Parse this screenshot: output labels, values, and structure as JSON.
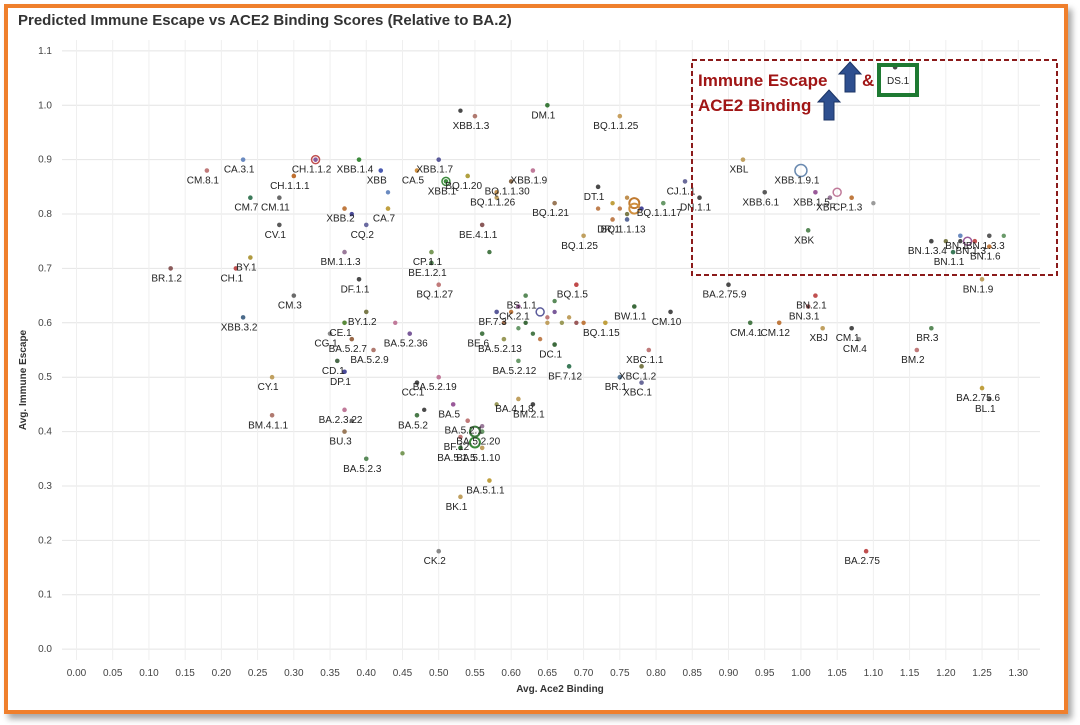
{
  "chart_data": {
    "type": "scatter",
    "title": "Predicted Immune Escape vs ACE2 Binding Scores (Relative to BA.2)",
    "xlabel": "Avg. Ace2 Binding",
    "ylabel": "Avg. Immune Escape",
    "xlim": [
      -0.02,
      1.33
    ],
    "ylim": [
      -0.02,
      1.12
    ],
    "grid": true,
    "xticks": [
      "0.00",
      "0.05",
      "0.10",
      "0.15",
      "0.20",
      "0.25",
      "0.30",
      "0.35",
      "0.40",
      "0.45",
      "0.50",
      "0.55",
      "0.60",
      "0.65",
      "0.70",
      "0.75",
      "0.80",
      "0.85",
      "0.90",
      "0.95",
      "1.00",
      "1.05",
      "1.10",
      "1.15",
      "1.20",
      "1.25",
      "1.30"
    ],
    "yticks": [
      "0.0",
      "0.1",
      "0.2",
      "0.3",
      "0.4",
      "0.5",
      "0.6",
      "0.7",
      "0.8",
      "0.9",
      "1.0",
      "1.1"
    ],
    "annotation": {
      "line1": "Immune Escape",
      "amp": "&",
      "line2": "ACE2 Binding",
      "highlight": "DS.1"
    },
    "points": [
      {
        "label": "XBB.1.3",
        "x": 0.55,
        "y": 0.98,
        "c": "#b07a70"
      },
      {
        "label": "DM.1",
        "x": 0.65,
        "y": 1.0,
        "c": "#3c7a3c"
      },
      {
        "label": "BQ.1.1.25",
        "x": 0.75,
        "y": 0.98,
        "c": "#c8a060"
      },
      {
        "label": "CH.1.1.2",
        "x": 0.33,
        "y": 0.9,
        "c": "#8a5a9a"
      },
      {
        "label": "CA.3.1",
        "x": 0.23,
        "y": 0.9,
        "c": "#6a8ac0"
      },
      {
        "label": "CM.8.1",
        "x": 0.18,
        "y": 0.88,
        "c": "#c07a7a"
      },
      {
        "label": "CH.1.1.1",
        "x": 0.3,
        "y": 0.87,
        "c": "#c07030"
      },
      {
        "label": "XBB.1.4",
        "x": 0.39,
        "y": 0.9,
        "c": "#3c8a3c"
      },
      {
        "label": "XBB",
        "x": 0.42,
        "y": 0.88,
        "c": "#4a5ab0"
      },
      {
        "label": "CA.5",
        "x": 0.47,
        "y": 0.88,
        "c": "#d09040"
      },
      {
        "label": "XBB.1.7",
        "x": 0.5,
        "y": 0.9,
        "c": "#5a5a9a"
      },
      {
        "label": "XBB.1",
        "x": 0.51,
        "y": 0.86,
        "c": "#3c8a3c"
      },
      {
        "label": "BQ.1.20",
        "x": 0.54,
        "y": 0.87,
        "c": "#b0a040"
      },
      {
        "label": "XBB.1.9",
        "x": 0.63,
        "y": 0.88,
        "c": "#c07a9a"
      },
      {
        "label": "BQ.1.1.30",
        "x": 0.6,
        "y": 0.86,
        "c": "#8a6a4a"
      },
      {
        "label": "BQ.1.1.26",
        "x": 0.58,
        "y": 0.84,
        "c": "#c09050"
      },
      {
        "label": "DT.1",
        "x": 0.72,
        "y": 0.85,
        "c": "#4a4a4a"
      },
      {
        "label": "CM.7",
        "x": 0.24,
        "y": 0.83,
        "c": "#3c7a5a"
      },
      {
        "label": "CM.11",
        "x": 0.28,
        "y": 0.83,
        "c": "#6a6a6a"
      },
      {
        "label": "XBB.2",
        "x": 0.37,
        "y": 0.81,
        "c": "#c07a40"
      },
      {
        "label": "CA.7",
        "x": 0.43,
        "y": 0.81,
        "c": "#c0a040"
      },
      {
        "label": "BQ.1.21",
        "x": 0.66,
        "y": 0.82,
        "c": "#9a7a5a"
      },
      {
        "label": "BQ.1.1.17",
        "x": 0.81,
        "y": 0.82,
        "c": "#6a9a6a"
      },
      {
        "label": "CV.1",
        "x": 0.28,
        "y": 0.78,
        "c": "#5a5a5a"
      },
      {
        "label": "CQ.2",
        "x": 0.4,
        "y": 0.78,
        "c": "#6a6aa0"
      },
      {
        "label": "BE.4.1.1",
        "x": 0.56,
        "y": 0.78,
        "c": "#8a5a5a"
      },
      {
        "label": "DR.1",
        "x": 0.74,
        "y": 0.79,
        "c": "#c08050"
      },
      {
        "label": "BQ.1.1.13",
        "x": 0.76,
        "y": 0.79,
        "c": "#5a6a9a"
      },
      {
        "label": "BQ.1.25",
        "x": 0.7,
        "y": 0.76,
        "c": "#c0a060"
      },
      {
        "label": "CP.1.1",
        "x": 0.49,
        "y": 0.73,
        "c": "#7a9a5a"
      },
      {
        "label": "BM.1.1.3",
        "x": 0.37,
        "y": 0.73,
        "c": "#9a7a9a"
      },
      {
        "label": "BE.1.2.1",
        "x": 0.49,
        "y": 0.71,
        "c": "#4a7a4a"
      },
      {
        "label": "BY.1",
        "x": 0.24,
        "y": 0.72,
        "c": "#b09a40"
      },
      {
        "label": "CH.1",
        "x": 0.22,
        "y": 0.7,
        "c": "#c05050"
      },
      {
        "label": "BR.1.2",
        "x": 0.13,
        "y": 0.7,
        "c": "#8a5a5a"
      },
      {
        "label": "DF.1.1",
        "x": 0.39,
        "y": 0.68,
        "c": "#4a4a4a"
      },
      {
        "label": "BQ.1.27",
        "x": 0.5,
        "y": 0.67,
        "c": "#c07a7a"
      },
      {
        "label": "BQ.1.5",
        "x": 0.69,
        "y": 0.67,
        "c": "#c04a4a"
      },
      {
        "label": "CM.3",
        "x": 0.3,
        "y": 0.65,
        "c": "#6a6a6a"
      },
      {
        "label": "BS.1.1",
        "x": 0.62,
        "y": 0.65,
        "c": "#5a8a5a"
      },
      {
        "label": "CK.2.1",
        "x": 0.61,
        "y": 0.63,
        "c": "#9a5a9a"
      },
      {
        "label": "BY.1.2",
        "x": 0.4,
        "y": 0.62,
        "c": "#7a7a4a"
      },
      {
        "label": "BF.7.3",
        "x": 0.58,
        "y": 0.62,
        "c": "#5a5a9a"
      },
      {
        "label": "BW.1.1",
        "x": 0.77,
        "y": 0.63,
        "c": "#3c6a3c"
      },
      {
        "label": "CM.10",
        "x": 0.82,
        "y": 0.62,
        "c": "#4a4a4a"
      },
      {
        "label": "XBB.3.2",
        "x": 0.23,
        "y": 0.61,
        "c": "#4a6a8a"
      },
      {
        "label": "CE.1",
        "x": 0.37,
        "y": 0.6,
        "c": "#5a8a3c"
      },
      {
        "label": "BQ.1.15",
        "x": 0.73,
        "y": 0.6,
        "c": "#c0a040"
      },
      {
        "label": "CG.1",
        "x": 0.35,
        "y": 0.58,
        "c": "#8a8a8a"
      },
      {
        "label": "BA.5.2.7",
        "x": 0.38,
        "y": 0.57,
        "c": "#9a6a4a"
      },
      {
        "label": "BA.5.2.36",
        "x": 0.46,
        "y": 0.58,
        "c": "#7a5a9a"
      },
      {
        "label": "BE.6",
        "x": 0.56,
        "y": 0.58,
        "c": "#4a7a4a"
      },
      {
        "label": "BA.5.2.13",
        "x": 0.59,
        "y": 0.57,
        "c": "#9a9a5a"
      },
      {
        "label": "DC.1",
        "x": 0.66,
        "y": 0.56,
        "c": "#3c6a3c"
      },
      {
        "label": "BA.5.2.9",
        "x": 0.41,
        "y": 0.55,
        "c": "#b07a70"
      },
      {
        "label": "BA.5.2.12",
        "x": 0.61,
        "y": 0.53,
        "c": "#6a9a6a"
      },
      {
        "label": "CD.1",
        "x": 0.36,
        "y": 0.53,
        "c": "#4a6a4a"
      },
      {
        "label": "DP.1",
        "x": 0.37,
        "y": 0.51,
        "c": "#4a4a9a"
      },
      {
        "label": "CY.1",
        "x": 0.27,
        "y": 0.5,
        "c": "#c0a060"
      },
      {
        "label": "BA.5.2.19",
        "x": 0.5,
        "y": 0.5,
        "c": "#c07a9a"
      },
      {
        "label": "CC.1",
        "x": 0.47,
        "y": 0.49,
        "c": "#4a4a4a"
      },
      {
        "label": "BF.7.12",
        "x": 0.68,
        "y": 0.52,
        "c": "#3c7a5a"
      },
      {
        "label": "BR.1",
        "x": 0.75,
        "y": 0.5,
        "c": "#5a7a9a"
      },
      {
        "label": "XBC.1.1",
        "x": 0.79,
        "y": 0.55,
        "c": "#c07a7a"
      },
      {
        "label": "XBC.1.2",
        "x": 0.78,
        "y": 0.52,
        "c": "#7a7a4a"
      },
      {
        "label": "XBC.1",
        "x": 0.78,
        "y": 0.49,
        "c": "#6a6a9a"
      },
      {
        "label": "BA.4.1.8",
        "x": 0.61,
        "y": 0.46,
        "c": "#c0a060"
      },
      {
        "label": "BM.2.1",
        "x": 0.63,
        "y": 0.45,
        "c": "#4a4a4a"
      },
      {
        "label": "BA.5",
        "x": 0.52,
        "y": 0.45,
        "c": "#9a5a9a"
      },
      {
        "label": "BA.5.2",
        "x": 0.47,
        "y": 0.43,
        "c": "#4a7a4a"
      },
      {
        "label": "BA.5.2.1",
        "x": 0.54,
        "y": 0.42,
        "c": "#c07a7a"
      },
      {
        "label": "BM.4.1.1",
        "x": 0.27,
        "y": 0.43,
        "c": "#b07a70"
      },
      {
        "label": "BA.2.3.22",
        "x": 0.37,
        "y": 0.44,
        "c": "#c07a9a"
      },
      {
        "label": "BU.3",
        "x": 0.37,
        "y": 0.4,
        "c": "#9a7a5a"
      },
      {
        "label": "BA.5.2.20",
        "x": 0.56,
        "y": 0.4,
        "c": "#6a9a6a"
      },
      {
        "label": "BF.12",
        "x": 0.53,
        "y": 0.39,
        "c": "#c07a7a"
      },
      {
        "label": "BA.5.1.5",
        "x": 0.53,
        "y": 0.37,
        "c": "#3c7a3c"
      },
      {
        "label": "BA.5.1.10",
        "x": 0.56,
        "y": 0.37,
        "c": "#c0a060"
      },
      {
        "label": "BA.5.2.3",
        "x": 0.4,
        "y": 0.35,
        "c": "#5a8a5a"
      },
      {
        "label": "BA.5.1.1",
        "x": 0.57,
        "y": 0.31,
        "c": "#c0a040"
      },
      {
        "label": "BK.1",
        "x": 0.53,
        "y": 0.28,
        "c": "#c0a060"
      },
      {
        "label": "CK.2",
        "x": 0.5,
        "y": 0.18,
        "c": "#8a8a8a"
      },
      {
        "label": "BA.2.75.9",
        "x": 0.9,
        "y": 0.67,
        "c": "#4a4a4a"
      },
      {
        "label": "BN.2.1",
        "x": 1.02,
        "y": 0.65,
        "c": "#c05050"
      },
      {
        "label": "BN.3.1",
        "x": 1.01,
        "y": 0.63,
        "c": "#9a5a5a"
      },
      {
        "label": "CM.4.1",
        "x": 0.93,
        "y": 0.6,
        "c": "#4a7a4a"
      },
      {
        "label": "CM.12",
        "x": 0.97,
        "y": 0.6,
        "c": "#c07a40"
      },
      {
        "label": "XBJ",
        "x": 1.03,
        "y": 0.59,
        "c": "#c0a060"
      },
      {
        "label": "CM.1",
        "x": 1.07,
        "y": 0.59,
        "c": "#4a4a4a"
      },
      {
        "label": "CM.4",
        "x": 1.08,
        "y": 0.57,
        "c": "#9a9a9a"
      },
      {
        "label": "BR.3",
        "x": 1.18,
        "y": 0.59,
        "c": "#5a8a5a"
      },
      {
        "label": "BM.2",
        "x": 1.16,
        "y": 0.55,
        "c": "#c07a7a"
      },
      {
        "label": "BA.2.75.6",
        "x": 1.25,
        "y": 0.48,
        "c": "#c0a040"
      },
      {
        "label": "BL.1",
        "x": 1.26,
        "y": 0.46,
        "c": "#6a6a6a"
      },
      {
        "label": "BA.2.75",
        "x": 1.09,
        "y": 0.18,
        "c": "#c05050"
      },
      {
        "label": "CJ.1.1",
        "x": 0.84,
        "y": 0.86,
        "c": "#6a6a9a"
      },
      {
        "label": "XBL",
        "x": 0.92,
        "y": 0.9,
        "c": "#c0a060"
      },
      {
        "label": "XBB.1.9.1",
        "x": 1.0,
        "y": 0.88,
        "c": "#6a8ab0",
        "r": 6
      },
      {
        "label": "DN.1.1",
        "x": 0.86,
        "y": 0.83,
        "c": "#4a4a4a"
      },
      {
        "label": "XBB.1.5",
        "x": 1.02,
        "y": 0.84,
        "c": "#9a5a9a"
      },
      {
        "label": "XBB.6.1",
        "x": 0.95,
        "y": 0.84,
        "c": "#5a5a5a"
      },
      {
        "label": "XBF",
        "x": 1.04,
        "y": 0.83,
        "c": "#9a7a9a"
      },
      {
        "label": "CP.1.3",
        "x": 1.07,
        "y": 0.83,
        "c": "#c07a40"
      },
      {
        "label": "XBK",
        "x": 1.01,
        "y": 0.77,
        "c": "#5a8a5a"
      },
      {
        "label": "BN.1.3.4",
        "x": 1.18,
        "y": 0.75,
        "c": "#4a4a4a"
      },
      {
        "label": "BN.1",
        "x": 1.22,
        "y": 0.76,
        "c": "#6a8ac0"
      },
      {
        "label": "BN.1.3.3",
        "x": 1.26,
        "y": 0.76,
        "c": "#5a5a5a"
      },
      {
        "label": "BN.1.3",
        "x": 1.24,
        "y": 0.75,
        "c": "#c05050"
      },
      {
        "label": "BN.1.6",
        "x": 1.26,
        "y": 0.74,
        "c": "#c07a40"
      },
      {
        "label": "BN.1.1",
        "x": 1.21,
        "y": 0.73,
        "c": "#3c7a5a"
      },
      {
        "label": "BN.1.9",
        "x": 1.25,
        "y": 0.68,
        "c": "#c0a060"
      },
      {
        "label": "DS.1",
        "x": 1.13,
        "y": 1.07,
        "c": "#4a4a4a"
      }
    ],
    "unlabeled_points": [
      [
        0.53,
        0.99,
        "#4a4a4a"
      ],
      [
        0.7,
        0.6,
        "#c07a40"
      ],
      [
        0.72,
        0.81,
        "#c08050"
      ],
      [
        0.74,
        0.82,
        "#c0a040"
      ],
      [
        0.75,
        0.81,
        "#c08050"
      ],
      [
        0.76,
        0.8,
        "#7a7a4a"
      ],
      [
        0.77,
        0.82,
        "#c07a30",
        "big"
      ],
      [
        0.77,
        0.81,
        "#d09040",
        "big"
      ],
      [
        0.76,
        0.83,
        "#c09050"
      ],
      [
        0.78,
        0.81,
        "#4a4a9a"
      ],
      [
        0.65,
        0.6,
        "#c0a060"
      ],
      [
        0.66,
        0.62,
        "#7a5a9a"
      ],
      [
        0.67,
        0.6,
        "#9a9a5a"
      ],
      [
        0.64,
        0.62,
        "#5a5a9a",
        "ring"
      ],
      [
        0.65,
        0.61,
        "#c07a7a"
      ],
      [
        0.66,
        0.64,
        "#5a8a5a"
      ],
      [
        0.68,
        0.61,
        "#c0a060"
      ],
      [
        0.63,
        0.58,
        "#4a7a4a"
      ],
      [
        0.64,
        0.57,
        "#c08050"
      ],
      [
        0.69,
        0.6,
        "#9a5a5a"
      ],
      [
        0.55,
        0.4,
        "#3c7a3c",
        "big"
      ],
      [
        0.55,
        0.38,
        "#3c8a3c",
        "big"
      ],
      [
        0.56,
        0.41,
        "#9a7a9a"
      ],
      [
        0.33,
        0.9,
        "#c05050",
        "ring"
      ],
      [
        0.51,
        0.86,
        "#3c8a3c",
        "ring"
      ],
      [
        0.38,
        0.8,
        "#4a4a9a"
      ],
      [
        0.57,
        0.73,
        "#4a7a4a"
      ],
      [
        0.59,
        0.6,
        "#9a6a4a"
      ],
      [
        0.6,
        0.62,
        "#c07a40"
      ],
      [
        0.61,
        0.59,
        "#6a9a6a"
      ],
      [
        0.62,
        0.6,
        "#3c6a3c"
      ],
      [
        0.44,
        0.6,
        "#c07a9a"
      ],
      [
        0.38,
        0.42,
        "#6a6a6a"
      ],
      [
        0.45,
        0.36,
        "#7a9a5a"
      ],
      [
        0.48,
        0.44,
        "#4a4a4a"
      ],
      [
        0.58,
        0.45,
        "#9a9a5a"
      ],
      [
        1.23,
        0.75,
        "#9a5a9a",
        "ring"
      ],
      [
        1.22,
        0.75,
        "#4a4a4a"
      ],
      [
        1.2,
        0.75,
        "#7a7a4a"
      ],
      [
        1.28,
        0.76,
        "#6a9a6a"
      ],
      [
        1.1,
        0.82,
        "#9a9a9a"
      ],
      [
        1.05,
        0.84,
        "#c07a9a",
        "ring"
      ],
      [
        0.58,
        0.83,
        "#c0a060"
      ],
      [
        0.43,
        0.84,
        "#6a8ac0"
      ]
    ]
  }
}
